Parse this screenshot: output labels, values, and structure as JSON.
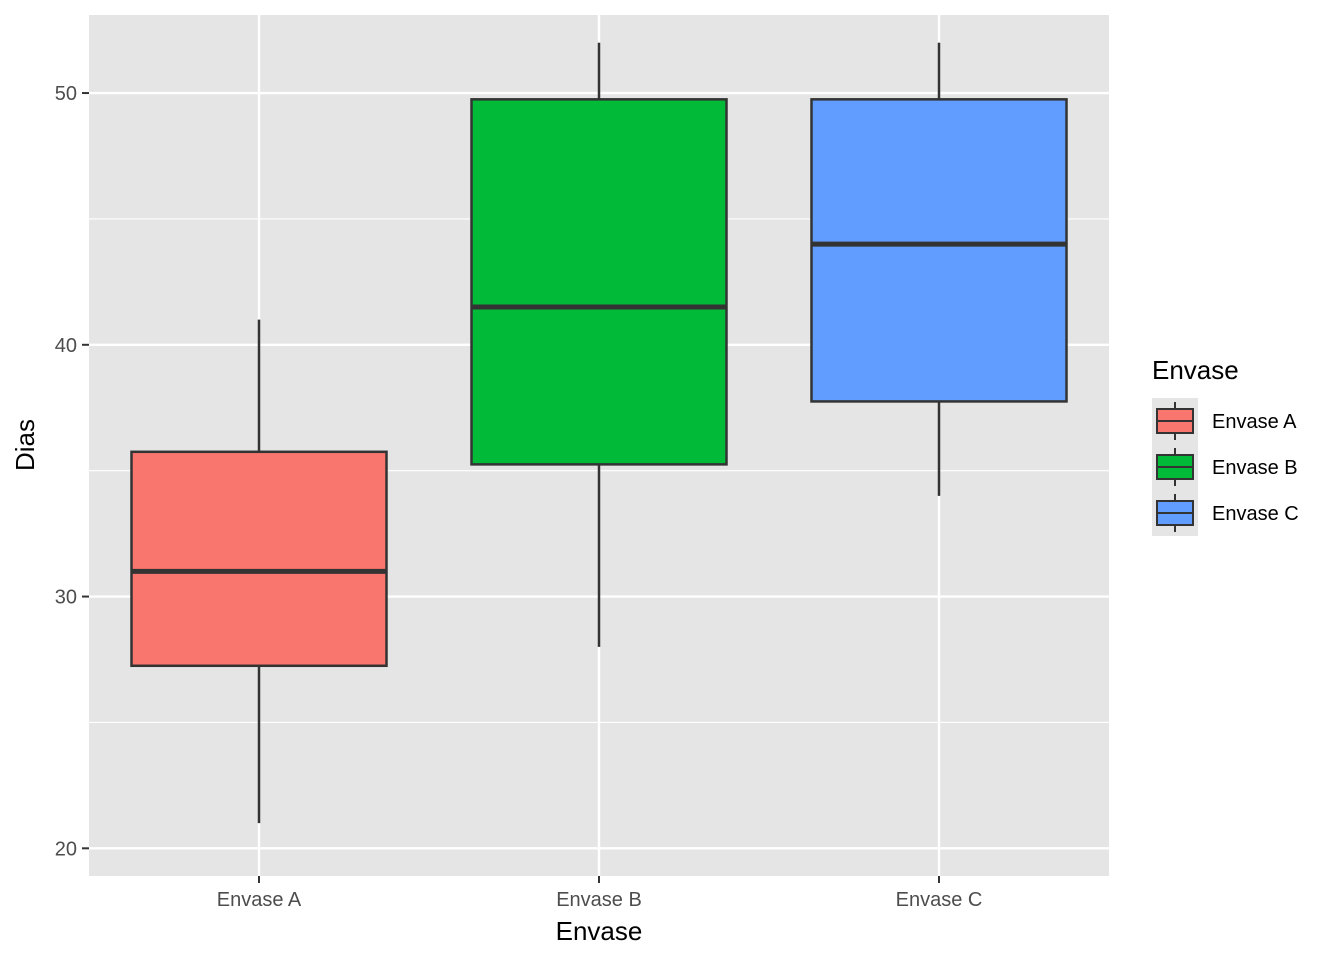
{
  "chart_data": {
    "type": "box",
    "xlabel": "Envase",
    "ylabel": "Dias",
    "ylim": [
      18.9,
      53.1
    ],
    "yticks": [
      20,
      30,
      40,
      50
    ],
    "ytick_labels": [
      "20",
      "30",
      "40",
      "50"
    ],
    "grid": true,
    "legend": {
      "title": "Envase",
      "position": "right"
    },
    "categories": [
      "Envase A",
      "Envase B",
      "Envase C"
    ],
    "series": [
      {
        "category": "Envase A",
        "color": "#F8766D",
        "min": 21,
        "q1": 27.25,
        "median": 31,
        "q3": 35.75,
        "max": 41
      },
      {
        "category": "Envase B",
        "color": "#00BA38",
        "min": 28,
        "q1": 35.25,
        "median": 41.5,
        "q3": 49.75,
        "max": 52
      },
      {
        "category": "Envase C",
        "color": "#619CFF",
        "min": 34,
        "q1": 37.75,
        "median": 44,
        "q3": 49.75,
        "max": 52
      }
    ]
  }
}
